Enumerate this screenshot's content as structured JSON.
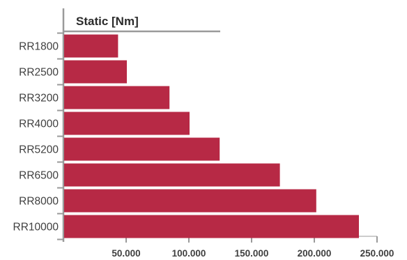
{
  "chart_data": {
    "type": "bar",
    "orientation": "horizontal",
    "title": "Static [Nm]",
    "xlabel": "",
    "ylabel": "",
    "categories": [
      "RR1800",
      "RR2500",
      "RR3200",
      "RR4000",
      "RR5200",
      "RR6500",
      "RR8000",
      "RR10000"
    ],
    "series": [
      {
        "values": [
          43000,
          50000,
          84000,
          100000,
          124000,
          172000,
          201000,
          235000
        ]
      }
    ],
    "xlim": [
      0,
      250000
    ],
    "xticks": [
      50000,
      100000,
      150000,
      200000,
      250000
    ],
    "xtick_labels": [
      "50.000",
      "100.000",
      "150.000",
      "200.000",
      "250.000"
    ],
    "grid": false,
    "legend": "none",
    "colors": {
      "bar": "#b72945",
      "axis": "#9a9a9a",
      "text": "#3f3f3f"
    }
  }
}
